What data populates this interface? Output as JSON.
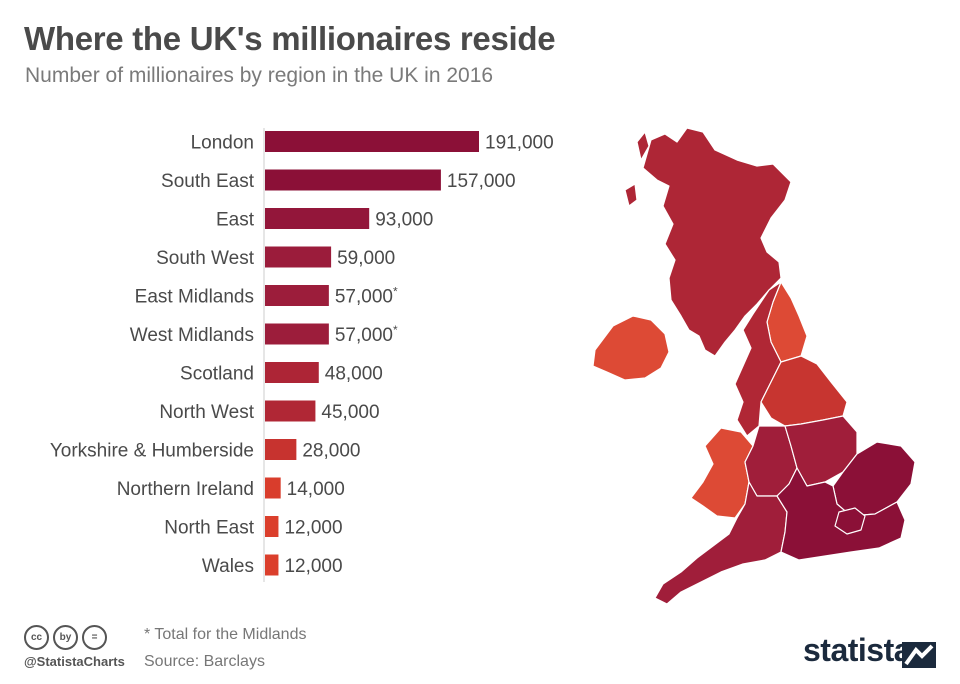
{
  "header": {
    "title": "Where the UK's millionaires reside",
    "subtitle": "Number of millionaires by region in the UK in 2016"
  },
  "chart_data": {
    "type": "bar",
    "orientation": "horizontal",
    "title": "Where the UK's millionaires reside",
    "subtitle": "Number of millionaires by region in the UK in 2016",
    "xlabel": "",
    "ylabel": "",
    "xlim": [
      0,
      191000
    ],
    "grid": false,
    "categories": [
      "London",
      "South East",
      "East",
      "South West",
      "East Midlands",
      "West Midlands",
      "Scotland",
      "North West",
      "Yorkshire & Humberside",
      "Northern Ireland",
      "North East",
      "Wales"
    ],
    "values": [
      191000,
      157000,
      93000,
      59000,
      57000,
      57000,
      48000,
      45000,
      28000,
      14000,
      12000,
      12000
    ],
    "value_labels": [
      "191,000",
      "157,000",
      "93,000",
      "59,000",
      "57,000",
      "57,000",
      "48,000",
      "45,000",
      "28,000",
      "14,000",
      "12,000",
      "12,000"
    ],
    "annotations": [
      "",
      "",
      "",
      "",
      "*",
      "*",
      "",
      "",
      "",
      "",
      "",
      ""
    ],
    "colors": [
      "#8b1037",
      "#8b1037",
      "#93163a",
      "#9b1c3b",
      "#9c1d3b",
      "#9c1d3b",
      "#ad2536",
      "#b02735",
      "#c7332f",
      "#d93d2c",
      "#db3f2c",
      "#db3f2c"
    ]
  },
  "map_colors": {
    "dark": "#8b1037",
    "medium": "#a01e3a",
    "scotland": "#ae2636",
    "north_west": "#b02735",
    "yorkshire": "#c73530",
    "light": "#dd4a35",
    "border": "#ffffff"
  },
  "footer": {
    "note": "* Total for the Midlands",
    "source": "Source: Barclays",
    "handle": "@StatistaCharts",
    "brand": "statista",
    "license_icons": [
      "cc",
      "by",
      "="
    ]
  }
}
